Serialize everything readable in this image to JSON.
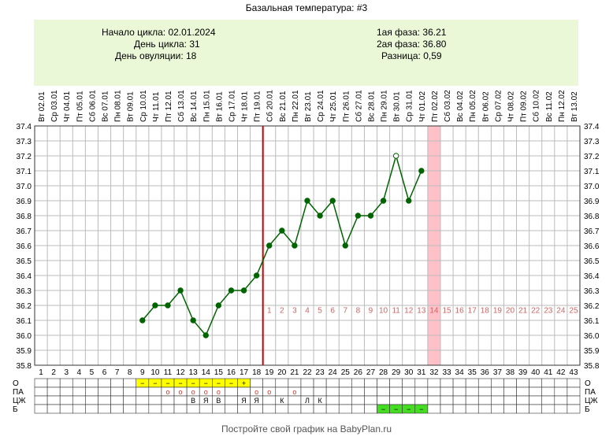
{
  "header": {
    "title": "Базальная температура: #3"
  },
  "info": {
    "left": [
      "Начало цикла: 02.01.2024",
      "День цикла: 31",
      "День овуляции: 18"
    ],
    "right": [
      "1ая фаза: 36.21",
      "2ая фаза: 36.80",
      "Разница: 0,59"
    ]
  },
  "footer": {
    "text": "Постройте свой график на BabyPlan.ru"
  },
  "chart_data": {
    "type": "line",
    "title": "Базальная температура: #3",
    "dates": [
      "Вт 02.01",
      "Ср 03.01",
      "Чт 04.01",
      "Пт 05.01",
      "Сб 06.01",
      "Вс 07.01",
      "Пн 08.01",
      "Вт 09.01",
      "Ср 10.01",
      "Чт 11.01",
      "Пт 12.01",
      "Сб 13.01",
      "Вс 14.01",
      "Пн 15.01",
      "Вт 16.01",
      "Ср 17.01",
      "Чт 18.01",
      "Пт 19.01",
      "Сб 20.01",
      "Вс 21.01",
      "Пн 22.01",
      "Вт 23.01",
      "Ср 24.01",
      "Чт 25.01",
      "Пт 26.01",
      "Сб 27.01",
      "Вс 28.01",
      "Пн 29.01",
      "Вт 30.01",
      "Ср 31.01",
      "Чт 01.02",
      "Пт 02.02",
      "Сб 03.02",
      "Вс 04.02",
      "Пн 05.02",
      "Вт 06.02",
      "Ср 07.02",
      "Чт 08.02",
      "Пт 09.02",
      "Сб 10.02",
      "Вс 11.02",
      "Пн 12.02",
      "Вт 13.02"
    ],
    "cycle_days": [
      "1",
      "2",
      "3",
      "4",
      "5",
      "6",
      "7",
      "8",
      "9",
      "10",
      "11",
      "12",
      "13",
      "14",
      "15",
      "16",
      "17",
      "18",
      "19",
      "20",
      "21",
      "22",
      "23",
      "24",
      "25",
      "26",
      "27",
      "28",
      "29",
      "30",
      "31",
      "32",
      "33",
      "34",
      "35",
      "36",
      "37",
      "38",
      "39",
      "40",
      "41",
      "42",
      "43"
    ],
    "yticks": [
      "35.8",
      "35.9",
      "36.0",
      "36.1",
      "36.2",
      "36.3",
      "36.4",
      "36.5",
      "36.6",
      "36.7",
      "36.8",
      "36.9",
      "37.0",
      "37.1",
      "37.2",
      "37.3",
      "37.4"
    ],
    "ylim": [
      35.8,
      37.4
    ],
    "series": [
      {
        "color": "#006400",
        "points": [
          [
            9,
            36.1
          ],
          [
            10,
            36.2
          ],
          [
            11,
            36.2
          ],
          [
            12,
            36.3
          ],
          [
            13,
            36.1
          ],
          [
            14,
            36.0
          ],
          [
            15,
            36.2
          ],
          [
            16,
            36.3
          ],
          [
            17,
            36.3
          ],
          [
            18,
            36.4
          ],
          [
            19,
            36.6
          ],
          [
            20,
            36.7
          ],
          [
            21,
            36.6
          ],
          [
            22,
            36.9
          ],
          [
            23,
            36.8
          ],
          [
            24,
            36.9
          ],
          [
            25,
            36.6
          ],
          [
            26,
            36.8
          ],
          [
            27,
            36.8
          ],
          [
            28,
            36.9
          ],
          [
            29,
            37.2
          ],
          [
            30,
            36.9
          ],
          [
            31,
            37.1
          ]
        ]
      }
    ],
    "open_marker_day": 29,
    "ovulation_day": 18,
    "ovulation_color": "#cc0000",
    "highlight_day": 32,
    "highlight_color": "#ffc0c8",
    "phase2_labels": [
      "1",
      "2",
      "3",
      "4",
      "5",
      "6",
      "7",
      "8",
      "9",
      "10",
      "11",
      "12",
      "13",
      "14",
      "15",
      "16",
      "17",
      "18",
      "19",
      "20",
      "21",
      "22",
      "23",
      "24",
      "25"
    ],
    "phase2_label_color": "#cc6666",
    "phase2_label_value": 36.17,
    "rows": {
      "labels": [
        "О",
        "ПА",
        "ЦЖ",
        "Б"
      ],
      "o": {
        "9": "−",
        "10": "−",
        "11": "−",
        "12": "−",
        "13": "−",
        "14": "−",
        "15": "−",
        "16": "−",
        "17": "+"
      },
      "o_color": "#ffff00",
      "pa": {
        "11": "о",
        "12": "о",
        "13": "о",
        "14": "о",
        "15": "о",
        "18": "о",
        "19": "о",
        "21": "о"
      },
      "pa_color": "#cc3333",
      "czh": {
        "13": "В",
        "14": "Я",
        "15": "В",
        "17": "Я",
        "18": "Я",
        "20": "К",
        "22": "Л",
        "23": "К"
      },
      "b": {
        "28": "−",
        "29": "−",
        "30": "−",
        "31": "−"
      },
      "b_color": "#44dd22"
    }
  }
}
